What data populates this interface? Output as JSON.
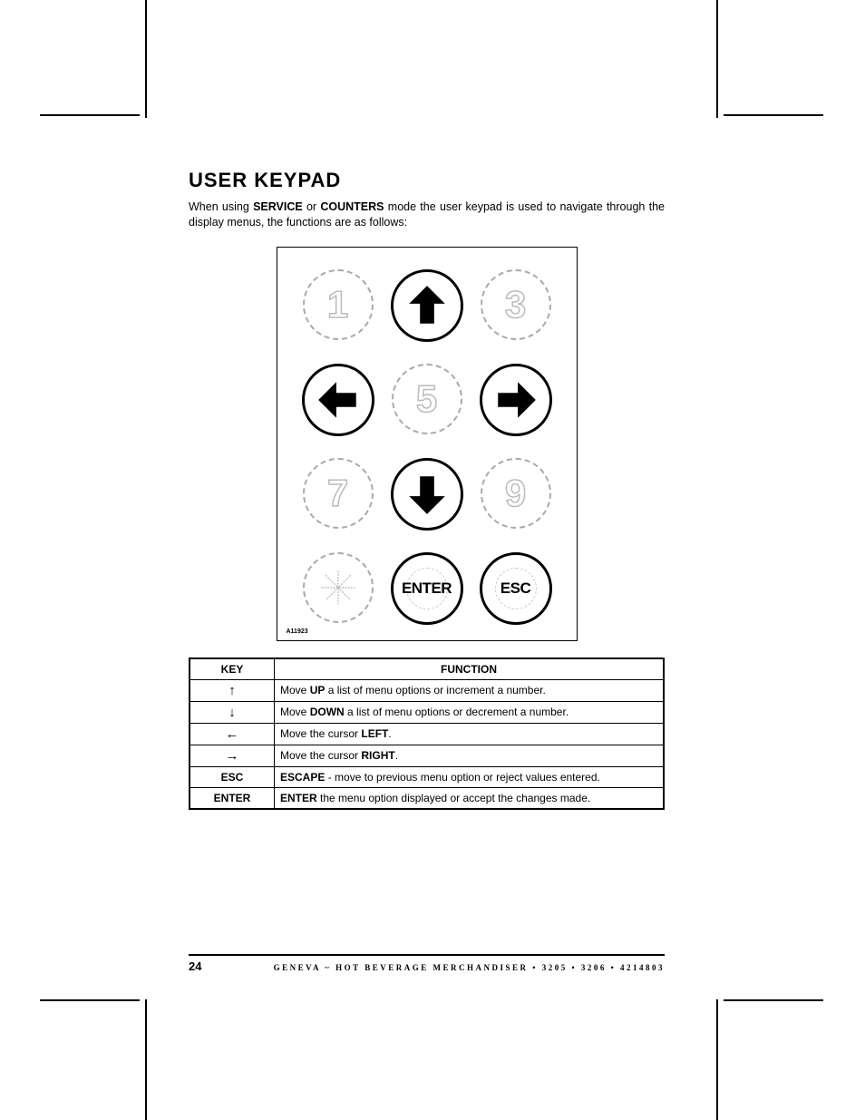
{
  "heading": "USER KEYPAD",
  "intro": {
    "pre": "When using ",
    "b1": "SERVICE",
    "mid1": " or ",
    "b2": "COUNTERS",
    "post": " mode the user keypad is used to navigate through the display menus, the functions are as follows:"
  },
  "keypad": {
    "ref": "A11923",
    "buttons": {
      "n1": "1",
      "n3": "3",
      "n5": "5",
      "n7": "7",
      "n9": "9",
      "enter": "ENTER",
      "esc": "ESC"
    }
  },
  "table": {
    "head_key": "KEY",
    "head_func": "FUNCTION",
    "rows": [
      {
        "key_glyph": "↑",
        "key_text": "",
        "func_pre": "Move ",
        "func_b": "UP",
        "func_post": " a list of menu options or increment a number."
      },
      {
        "key_glyph": "↓",
        "key_text": "",
        "func_pre": "Move ",
        "func_b": "DOWN",
        "func_post": " a list of menu options or decrement a number."
      },
      {
        "key_glyph": "←",
        "key_text": "",
        "func_pre": "Move the cursor ",
        "func_b": "LEFT",
        "func_post": "."
      },
      {
        "key_glyph": "→",
        "key_text": "",
        "func_pre": "Move the cursor ",
        "func_b": "RIGHT",
        "func_post": "."
      },
      {
        "key_glyph": "",
        "key_text": "ESC",
        "func_pre": "",
        "func_b": "ESCAPE",
        "func_post": " - move to previous menu option or reject values entered."
      },
      {
        "key_glyph": "",
        "key_text": "ENTER",
        "func_pre": "",
        "func_b": "ENTER",
        "func_post": " the menu option displayed or accept the changes made."
      }
    ]
  },
  "footer": {
    "page": "24",
    "text": "GENEVA ~ HOT BEVERAGE MERCHANDISER • 3205 • 3206 • 4214803"
  },
  "colors": {
    "ink": "#000000",
    "ghost": "#bbbbbb",
    "bg": "#ffffff"
  }
}
